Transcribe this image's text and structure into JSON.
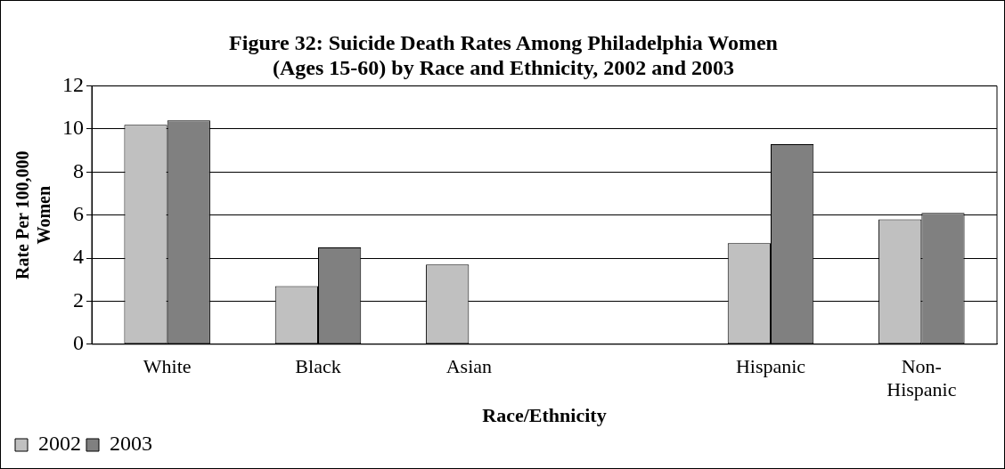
{
  "chart_data": {
    "type": "bar",
    "title": [
      "Figure 32: Suicide Death Rates Among Philadelphia Women",
      "(Ages 15-60) by Race and Ethnicity, 2002 and 2003"
    ],
    "xlabel": "Race/Ethnicity",
    "ylabel": "Rate Per 100,000 Women",
    "categories": [
      "White",
      "Black",
      "Asian",
      null,
      "Hispanic",
      "Non-Hispanic"
    ],
    "series": [
      {
        "name": "2002",
        "color": "#c0c0c0",
        "values": [
          10.2,
          2.7,
          3.7,
          null,
          4.7,
          5.8
        ]
      },
      {
        "name": "2003",
        "color": "#808080",
        "values": [
          10.4,
          4.5,
          null,
          null,
          9.3,
          6.1
        ]
      }
    ],
    "ylim": [
      0,
      12
    ],
    "yticks": [
      0,
      2,
      4,
      6,
      8,
      10,
      12
    ],
    "grid": "y",
    "legend": "bottom left"
  }
}
